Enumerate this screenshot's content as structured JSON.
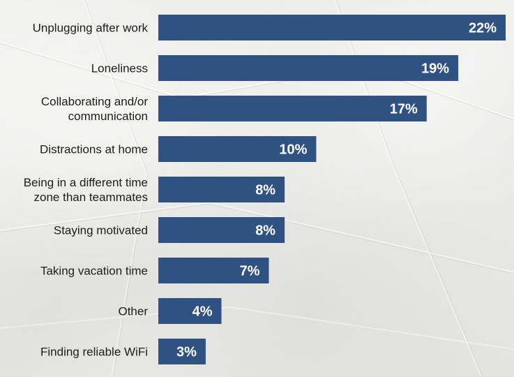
{
  "chart_data": {
    "type": "bar",
    "orientation": "horizontal",
    "categories": [
      [
        "Unplugging after work"
      ],
      [
        "Loneliness"
      ],
      [
        "Collaborating and/or",
        "communication"
      ],
      [
        "Distractions at home"
      ],
      [
        "Being in a different time",
        "zone than teammates"
      ],
      [
        "Staying motivated"
      ],
      [
        "Taking vacation time"
      ],
      [
        "Other"
      ],
      [
        "Finding reliable WiFi"
      ]
    ],
    "values": [
      22,
      19,
      17,
      10,
      8,
      8,
      7,
      4,
      3
    ],
    "value_labels": [
      "22%",
      "19%",
      "17%",
      "10%",
      "8%",
      "8%",
      "7%",
      "4%",
      "3%"
    ],
    "xlim": [
      0,
      22
    ],
    "grid": false,
    "legend": "none",
    "bar_color": "#2f5283",
    "label_color": "#1c1c1c",
    "value_label_color": "#ffffff"
  }
}
